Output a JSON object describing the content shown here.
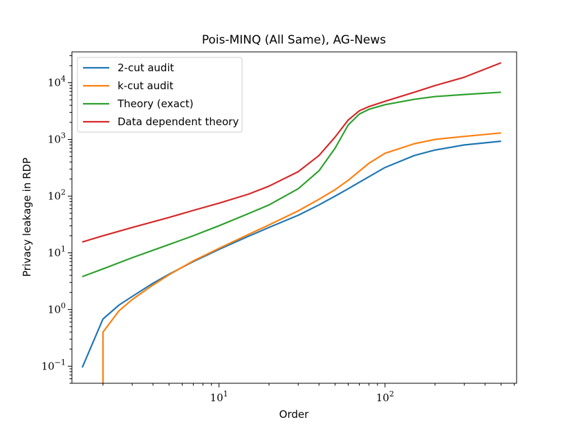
{
  "chart_data": {
    "type": "line",
    "title": "Pois-MINQ (All Same), AG-News",
    "xlabel": "Order",
    "ylabel": "Privacy leakage in RDP",
    "xscale": "log",
    "yscale": "log",
    "xlim": [
      1.3,
      620
    ],
    "ylim": [
      0.05,
      35000
    ],
    "grid": false,
    "legend_position": "top-left",
    "x_ticks": [
      {
        "value": 10,
        "base": "10",
        "exp": "1"
      },
      {
        "value": 100,
        "base": "10",
        "exp": "2"
      }
    ],
    "y_ticks": [
      {
        "value": 0.1,
        "base": "10",
        "exp": "−1"
      },
      {
        "value": 1,
        "base": "10",
        "exp": "0"
      },
      {
        "value": 10,
        "base": "10",
        "exp": "1"
      },
      {
        "value": 100,
        "base": "10",
        "exp": "2"
      },
      {
        "value": 1000,
        "base": "10",
        "exp": "3"
      },
      {
        "value": 10000,
        "base": "10",
        "exp": "4"
      }
    ],
    "series": [
      {
        "name": "2-cut audit",
        "color": "#1f77b4",
        "x": [
          1.5,
          2,
          2.5,
          3,
          4,
          5,
          7,
          10,
          15,
          20,
          30,
          40,
          50,
          60,
          80,
          100,
          150,
          200,
          300,
          500
        ],
        "y": [
          0.095,
          0.68,
          1.2,
          1.7,
          2.9,
          4.2,
          7.0,
          11.5,
          19.5,
          28,
          46,
          70,
          100,
          135,
          220,
          320,
          520,
          650,
          800,
          930
        ]
      },
      {
        "name": "k-cut audit",
        "color": "#ff7f0e",
        "x": [
          2,
          2,
          2.5,
          3,
          4,
          5,
          7,
          10,
          15,
          20,
          30,
          40,
          50,
          60,
          80,
          100,
          150,
          200,
          300,
          500
        ],
        "y": [
          0.05,
          0.4,
          0.95,
          1.5,
          2.7,
          4.1,
          7.2,
          12,
          21,
          31,
          55,
          88,
          130,
          190,
          380,
          570,
          840,
          1000,
          1130,
          1300
        ]
      },
      {
        "name": "Theory (exact)",
        "color": "#2ca02c",
        "x": [
          1.5,
          2,
          3,
          5,
          7,
          10,
          15,
          20,
          30,
          40,
          50,
          60,
          70,
          80,
          100,
          150,
          200,
          300,
          500
        ],
        "y": [
          3.8,
          5.2,
          8.2,
          14,
          20,
          30,
          49,
          70,
          135,
          280,
          700,
          1800,
          2800,
          3400,
          4100,
          5100,
          5700,
          6200,
          6800
        ]
      },
      {
        "name": "Data dependent theory",
        "color": "#d62728",
        "x": [
          1.5,
          2,
          3,
          5,
          7,
          10,
          15,
          20,
          30,
          40,
          50,
          60,
          70,
          80,
          100,
          150,
          200,
          300,
          500
        ],
        "y": [
          15.5,
          20,
          28,
          42,
          56,
          75,
          108,
          150,
          270,
          520,
          1100,
          2200,
          3200,
          3800,
          4700,
          6800,
          8900,
          12500,
          22500
        ]
      }
    ]
  }
}
